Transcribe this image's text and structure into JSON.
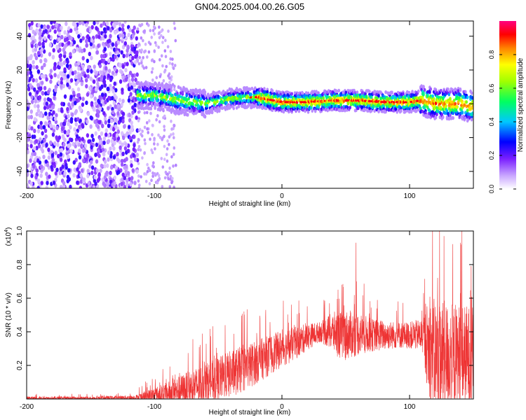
{
  "figure": {
    "title": "GN04.2025.004.00.26.G05"
  },
  "chart_data": [
    {
      "type": "heatmap",
      "xlabel": "Height of straight line (km)",
      "ylabel": "Frequency (Hz)",
      "xlim": [
        -200,
        150
      ],
      "ylim": [
        -50,
        49
      ],
      "xticks": [
        -200,
        -100,
        0,
        100
      ],
      "yticks": [
        -40,
        -20,
        0,
        20,
        40
      ],
      "colorbar": {
        "label": "Normalized spectral amplitude",
        "range": [
          0,
          1
        ],
        "ticks": [
          0.0,
          0.2,
          0.4,
          0.6,
          0.8
        ],
        "tick_labels": [
          "0.0",
          "0.2",
          "0.4",
          "0.6",
          "0.8"
        ],
        "colormap": [
          "#ffffff",
          "#9f5fff",
          "#0000ff",
          "#00ffff",
          "#00ff00",
          "#ffff00",
          "#ff0000",
          "#ff00ff"
        ]
      },
      "regions": [
        {
          "x_range": [
            -200,
            -113
          ],
          "description_values": "scattered noise",
          "amplitude": [
            0.05,
            0.25
          ]
        },
        {
          "x_range": [
            -113,
            150
          ],
          "ridge_frequency_hz": 2,
          "amplitude_peak": 1.0
        }
      ],
      "ridge": {
        "x": [
          -113,
          -100,
          -80,
          -60,
          -40,
          -20,
          0,
          20,
          40,
          60,
          80,
          100,
          110,
          120,
          140,
          150
        ],
        "frequency": [
          5,
          5,
          2,
          0,
          3,
          4,
          1,
          1,
          2,
          2,
          1,
          1,
          2,
          0,
          0,
          -2
        ]
      }
    },
    {
      "type": "line",
      "xlabel": "Height of straight line (km)",
      "ylabel": "SNR (10 * v/v)",
      "y_multiplier": "(x10",
      "y_multiplier_exp": "4",
      "xlim": [
        -200,
        150
      ],
      "ylim": [
        0,
        1.0
      ],
      "xticks": [
        -200,
        -100,
        0,
        100
      ],
      "yticks": [
        0.2,
        0.4,
        0.6,
        0.8,
        1.0
      ],
      "ytick_labels": [
        "0.2",
        "0.4",
        "0.6",
        "0.8",
        "1.0"
      ],
      "color": "#ee3333",
      "envelope": {
        "x": [
          -200,
          -150,
          -115,
          -110,
          -100,
          -90,
          -80,
          -70,
          -60,
          -50,
          -40,
          -30,
          -20,
          -10,
          0,
          10,
          20,
          30,
          40,
          45,
          50,
          60,
          70,
          80,
          90,
          100,
          110,
          115,
          120,
          130,
          140,
          150
        ],
        "base": [
          0.005,
          0.005,
          0.008,
          0.01,
          0.02,
          0.03,
          0.05,
          0.07,
          0.09,
          0.12,
          0.15,
          0.18,
          0.22,
          0.26,
          0.3,
          0.33,
          0.37,
          0.4,
          0.4,
          0.38,
          0.38,
          0.39,
          0.38,
          0.38,
          0.38,
          0.38,
          0.38,
          0.3,
          0.25,
          0.25,
          0.25,
          0.25
        ],
        "spread": [
          0.01,
          0.01,
          0.015,
          0.03,
          0.05,
          0.07,
          0.09,
          0.11,
          0.12,
          0.13,
          0.14,
          0.14,
          0.13,
          0.12,
          0.11,
          0.1,
          0.08,
          0.06,
          0.12,
          0.14,
          0.15,
          0.13,
          0.1,
          0.09,
          0.08,
          0.08,
          0.1,
          0.3,
          0.35,
          0.33,
          0.32,
          0.3
        ]
      },
      "peaks": [
        {
          "x": 47,
          "y": 0.68
        },
        {
          "x": 58,
          "y": 0.93
        },
        {
          "x": 118,
          "y": 1.0
        },
        {
          "x": 127,
          "y": 0.97
        },
        {
          "x": 140,
          "y": 0.93
        }
      ]
    }
  ]
}
